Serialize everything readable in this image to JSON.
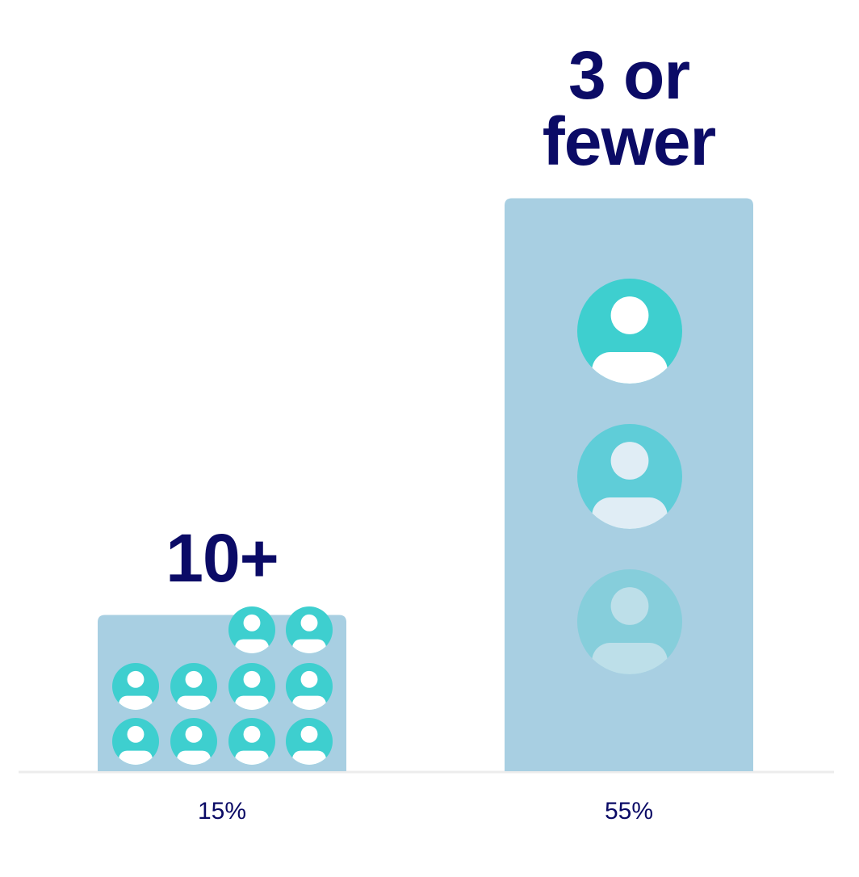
{
  "chart_data": {
    "type": "bar",
    "categories": [
      "10+",
      "3 or fewer"
    ],
    "values": [
      15,
      55
    ],
    "value_labels": [
      "15%",
      "55%"
    ],
    "color": "#a8cfe2"
  }
}
